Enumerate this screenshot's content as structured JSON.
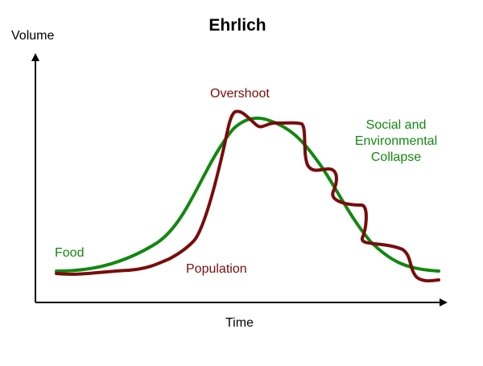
{
  "title": "Ehrlich",
  "axes": {
    "y_label": "Volume",
    "x_label": "Time"
  },
  "curves": {
    "food": {
      "label": "Food",
      "color": "#118811"
    },
    "population": {
      "label": "Population",
      "color": "#7a0c0c"
    }
  },
  "annotations": {
    "overshoot": "Overshoot",
    "collapse_lines": [
      "Social and",
      "Environmental",
      "Collapse"
    ]
  },
  "colors": {
    "axis": "#000000",
    "food_line": "#118811",
    "population_line": "#7a0c0c"
  }
}
